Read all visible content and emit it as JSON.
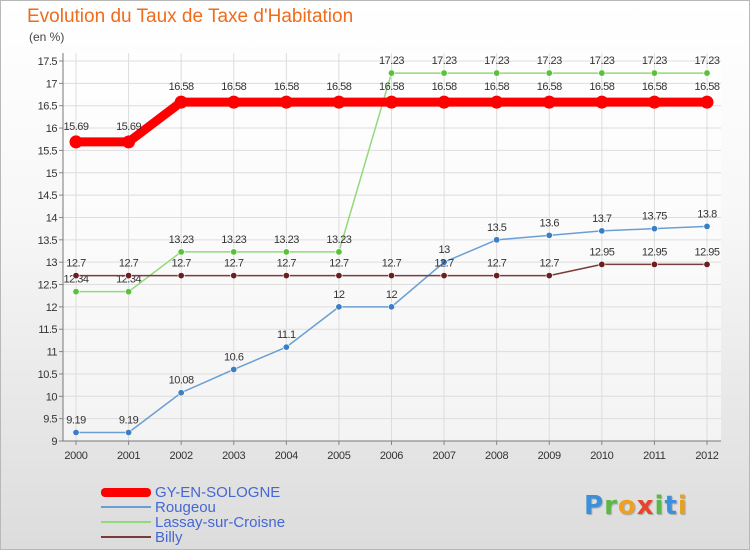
{
  "title": "Evolution du Taux de Taxe d'Habitation",
  "unit": "(en %)",
  "brand": {
    "name": "Proxiti",
    "letters": [
      "P",
      "r",
      "o",
      "x",
      "i",
      "t",
      "i"
    ],
    "colors": [
      "#3c8fd8",
      "#5bb847",
      "#f0a020",
      "#e8442c",
      "#5bb847",
      "#3c8fd8",
      "#e8a020"
    ]
  },
  "chart_data": {
    "type": "line",
    "title": "Evolution du Taux de Taxe d'Habitation",
    "subtitle": "(en %)",
    "x": [
      2000,
      2001,
      2002,
      2003,
      2004,
      2005,
      2006,
      2007,
      2008,
      2009,
      2010,
      2011,
      2012
    ],
    "x_tick_labels": [
      "2000",
      "2001",
      "2002",
      "2003",
      "2004",
      "2005",
      "2006",
      "2007",
      "2008",
      "2009",
      "2010",
      "2011",
      "2012"
    ],
    "ylim": [
      9,
      17.5
    ],
    "y_ticks": [
      9,
      9.5,
      10,
      10.5,
      11,
      11.5,
      12,
      12.5,
      13,
      13.5,
      14,
      14.5,
      15,
      15.5,
      16,
      16.5,
      17,
      17.5
    ],
    "y_tick_labels": [
      "9",
      "9.5",
      "10",
      "10.5",
      "11",
      "11.5",
      "12",
      "12.5",
      "13",
      "13.5",
      "14",
      "14.5",
      "15",
      "15.5",
      "16",
      "16.5",
      "17",
      "17.5"
    ],
    "grid": true,
    "legend_position": "bottom-left",
    "series": [
      {
        "name": "GY-EN-SOLOGNE",
        "color": "#ff0000",
        "highlight": true,
        "values": [
          15.69,
          15.69,
          16.58,
          16.58,
          16.58,
          16.58,
          16.58,
          16.58,
          16.58,
          16.58,
          16.58,
          16.58,
          16.58
        ],
        "labels": [
          "15.69",
          "15.69",
          "16.58",
          "16.58",
          "16.58",
          "16.58",
          "16.58",
          "16.58",
          "16.58",
          "16.58",
          "16.58",
          "16.58",
          "16.58"
        ]
      },
      {
        "name": "Rougeou",
        "color": "#6b9fd3",
        "dot_color": "#3a7ec6",
        "values": [
          9.19,
          9.19,
          10.08,
          10.6,
          11.1,
          12,
          12,
          13,
          13.5,
          13.6,
          13.7,
          13.75,
          13.8
        ],
        "labels": [
          "9.19",
          "9.19",
          "10.08",
          "10.6",
          "11.1",
          "12",
          "12",
          "13",
          "13.5",
          "13.6",
          "13.7",
          "13.75",
          "13.8"
        ]
      },
      {
        "name": "Lassay-sur-Croisne",
        "color": "#93d97a",
        "dot_color": "#59c23c",
        "values": [
          12.34,
          12.34,
          13.23,
          13.23,
          13.23,
          13.23,
          17.23,
          17.23,
          17.23,
          17.23,
          17.23,
          17.23,
          17.23
        ],
        "labels": [
          "12.34",
          "12.34",
          "13.23",
          "13.23",
          "13.23",
          "13.23",
          "17.23",
          "17.23",
          "17.23",
          "17.23",
          "17.23",
          "17.23",
          "17.23"
        ]
      },
      {
        "name": "Billy",
        "color": "#7a3b3b",
        "dot_color": "#6b2020",
        "values": [
          12.7,
          12.7,
          12.7,
          12.7,
          12.7,
          12.7,
          12.7,
          12.7,
          12.7,
          12.7,
          12.95,
          12.95,
          12.95
        ],
        "labels": [
          "12.7",
          "12.7",
          "12.7",
          "12.7",
          "12.7",
          "12.7",
          "12.7",
          "12.7",
          "12.7",
          "12.7",
          "12.95",
          "12.95",
          "12.95"
        ]
      }
    ]
  }
}
